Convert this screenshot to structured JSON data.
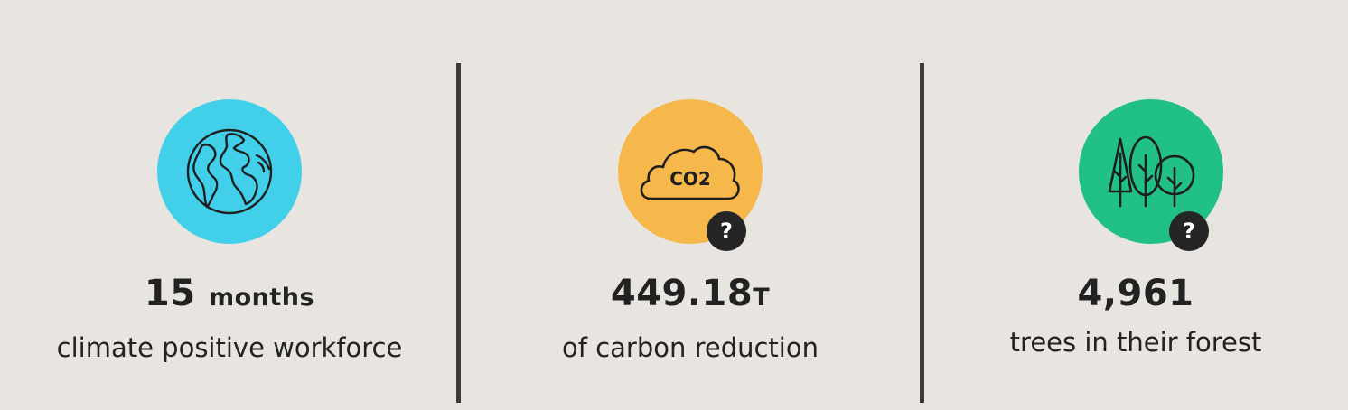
{
  "colors": {
    "background": "#e8e5e0",
    "divider": "#3b3b3b",
    "earth_circle": "#41cfea",
    "cloud_circle": "#f6b84b",
    "tree_circle": "#21c087",
    "help_badge": "#252525"
  },
  "stats": [
    {
      "icon": "globe-icon",
      "value": "15",
      "unit": "months",
      "caption": "climate positive workforce",
      "has_help": false
    },
    {
      "icon": "co2-cloud-icon",
      "icon_text": "CO2",
      "value": "449.18",
      "unit": "T",
      "caption": "of carbon reduction",
      "has_help": true,
      "help_label": "?"
    },
    {
      "icon": "trees-icon",
      "value": "4,961",
      "caption": "trees in their forest",
      "has_help": true,
      "help_label": "?"
    }
  ]
}
